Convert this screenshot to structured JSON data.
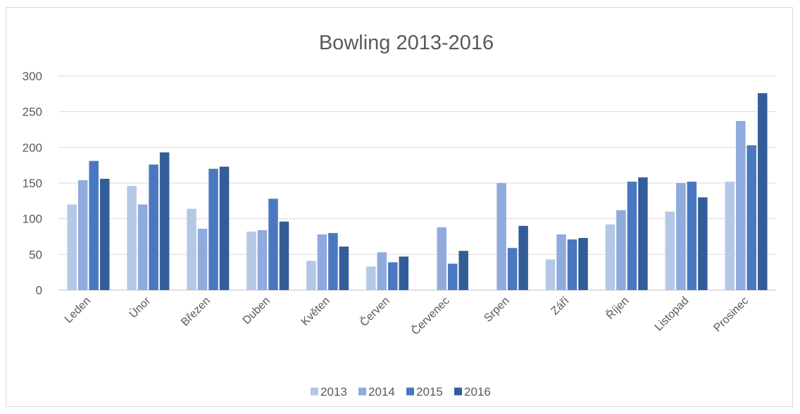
{
  "chart_data": {
    "type": "bar",
    "title": "Bowling 2013-2016",
    "xlabel": "",
    "ylabel": "",
    "ylim": [
      0,
      300
    ],
    "yticks": [
      0,
      50,
      100,
      150,
      200,
      250,
      300
    ],
    "grid": true,
    "legend_position": "bottom",
    "categories": [
      "Leden",
      "Únor",
      "Březen",
      "Duben",
      "Květen",
      "Červen",
      "Červenec",
      "Srpen",
      "Září",
      "Říjen",
      "Listopad",
      "Prosinec"
    ],
    "series": [
      {
        "name": "2013",
        "color": "#b4c7e7",
        "values": [
          120,
          146,
          114,
          82,
          41,
          33,
          0,
          0,
          43,
          92,
          110,
          152
        ]
      },
      {
        "name": "2014",
        "color": "#8faadc",
        "values": [
          154,
          120,
          86,
          84,
          78,
          53,
          88,
          150,
          78,
          112,
          150,
          237
        ]
      },
      {
        "name": "2015",
        "color": "#4a78c0",
        "values": [
          181,
          176,
          170,
          128,
          80,
          39,
          37,
          59,
          71,
          152,
          152,
          203
        ]
      },
      {
        "name": "2016",
        "color": "#335d98",
        "values": [
          156,
          193,
          173,
          96,
          61,
          47,
          55,
          90,
          73,
          158,
          130,
          276
        ]
      }
    ]
  }
}
